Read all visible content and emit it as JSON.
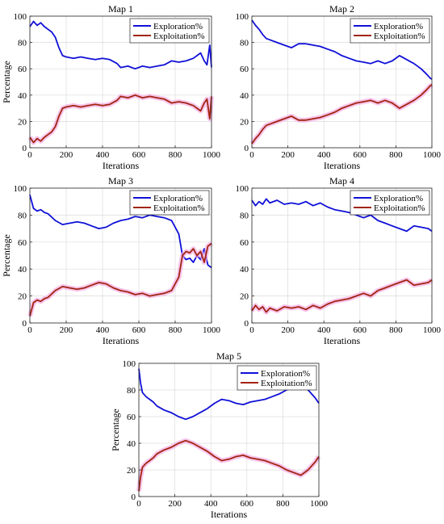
{
  "figure": {
    "series_names": [
      "Exploration%",
      "Exploitation%"
    ],
    "series_colors": [
      "#1010d8",
      "#a32412"
    ],
    "band_color": "#f2a8e2"
  },
  "chart_data": [
    {
      "type": "line",
      "title": "Map 1",
      "xlabel": "Iterations",
      "ylabel": "Percentage",
      "xlim": [
        0,
        1000
      ],
      "ylim": [
        0,
        100
      ],
      "xticks": [
        "0",
        "200",
        "400",
        "600",
        "800",
        "1000"
      ],
      "yticks": [
        "0",
        "20",
        "40",
        "60",
        "80",
        "100"
      ],
      "grid": true,
      "legend": "top-right",
      "series": [
        {
          "name": "Exploration%",
          "x": [
            0,
            20,
            40,
            60,
            80,
            100,
            120,
            140,
            160,
            180,
            200,
            240,
            280,
            320,
            360,
            400,
            440,
            480,
            500,
            540,
            580,
            620,
            660,
            700,
            740,
            780,
            820,
            860,
            900,
            940,
            960,
            975,
            990,
            1000
          ],
          "y": [
            92,
            96,
            93,
            95,
            92,
            90,
            88,
            84,
            76,
            70,
            69,
            68,
            69,
            68,
            67,
            68,
            67,
            64,
            61,
            62,
            60,
            62,
            61,
            62,
            63,
            66,
            65,
            66,
            68,
            72,
            66,
            63,
            78,
            61
          ]
        },
        {
          "name": "Exploitation%",
          "x": [
            0,
            20,
            40,
            60,
            80,
            100,
            120,
            140,
            160,
            180,
            200,
            240,
            280,
            320,
            360,
            400,
            440,
            480,
            500,
            540,
            580,
            620,
            660,
            700,
            740,
            780,
            820,
            860,
            900,
            940,
            960,
            975,
            990,
            1000
          ],
          "y": [
            8,
            4,
            7,
            5,
            8,
            10,
            12,
            16,
            24,
            30,
            31,
            32,
            31,
            32,
            33,
            32,
            33,
            36,
            39,
            38,
            40,
            38,
            39,
            38,
            37,
            34,
            35,
            34,
            32,
            28,
            34,
            37,
            22,
            39
          ]
        }
      ]
    },
    {
      "type": "line",
      "title": "Map 2",
      "xlabel": "Iterations",
      "ylabel": "",
      "xlim": [
        0,
        1000
      ],
      "ylim": [
        0,
        100
      ],
      "xticks": [
        "0",
        "200",
        "400",
        "600",
        "800",
        "1000"
      ],
      "yticks": [
        "0",
        "20",
        "40",
        "60",
        "80",
        "100"
      ],
      "grid": true,
      "legend": "top-right",
      "series": [
        {
          "name": "Exploration%",
          "x": [
            0,
            20,
            40,
            60,
            80,
            100,
            140,
            180,
            220,
            260,
            300,
            340,
            380,
            420,
            460,
            500,
            540,
            580,
            620,
            660,
            700,
            740,
            780,
            820,
            860,
            900,
            940,
            970,
            990,
            1000
          ],
          "y": [
            97,
            93,
            90,
            86,
            83,
            82,
            80,
            78,
            76,
            79,
            79,
            78,
            77,
            75,
            73,
            70,
            68,
            66,
            65,
            64,
            66,
            64,
            66,
            70,
            67,
            64,
            60,
            56,
            53,
            52
          ]
        },
        {
          "name": "Exploitation%",
          "x": [
            0,
            20,
            40,
            60,
            80,
            100,
            140,
            180,
            220,
            260,
            300,
            340,
            380,
            420,
            460,
            500,
            540,
            580,
            620,
            660,
            700,
            740,
            780,
            820,
            860,
            900,
            940,
            970,
            990,
            1000
          ],
          "y": [
            3,
            7,
            10,
            14,
            17,
            18,
            20,
            22,
            24,
            21,
            21,
            22,
            23,
            25,
            27,
            30,
            32,
            34,
            35,
            36,
            34,
            36,
            34,
            30,
            33,
            36,
            40,
            44,
            47,
            48
          ]
        }
      ]
    },
    {
      "type": "line",
      "title": "Map 3",
      "xlabel": "Iterations",
      "ylabel": "Percentage",
      "xlim": [
        0,
        1000
      ],
      "ylim": [
        0,
        100
      ],
      "xticks": [
        "0",
        "200",
        "400",
        "600",
        "800",
        "1000"
      ],
      "yticks": [
        "0",
        "20",
        "40",
        "60",
        "80",
        "100"
      ],
      "grid": true,
      "legend": "top-right",
      "series": [
        {
          "name": "Exploration%",
          "x": [
            0,
            20,
            40,
            60,
            80,
            100,
            140,
            180,
            220,
            260,
            300,
            340,
            380,
            420,
            460,
            500,
            540,
            580,
            620,
            660,
            700,
            740,
            780,
            820,
            840,
            860,
            880,
            900,
            920,
            940,
            960,
            980,
            1000
          ],
          "y": [
            95,
            85,
            83,
            84,
            82,
            81,
            76,
            73,
            74,
            75,
            74,
            72,
            70,
            71,
            74,
            76,
            77,
            79,
            78,
            80,
            79,
            78,
            76,
            66,
            50,
            47,
            48,
            45,
            50,
            47,
            55,
            43,
            41
          ]
        },
        {
          "name": "Exploitation%",
          "x": [
            0,
            20,
            40,
            60,
            80,
            100,
            140,
            180,
            220,
            260,
            300,
            340,
            380,
            420,
            460,
            500,
            540,
            580,
            620,
            660,
            700,
            740,
            780,
            820,
            840,
            860,
            880,
            900,
            920,
            940,
            960,
            980,
            1000
          ],
          "y": [
            5,
            15,
            17,
            16,
            18,
            19,
            24,
            27,
            26,
            25,
            26,
            28,
            30,
            29,
            26,
            24,
            23,
            21,
            22,
            20,
            21,
            22,
            24,
            34,
            50,
            53,
            52,
            55,
            50,
            53,
            45,
            57,
            59
          ]
        }
      ]
    },
    {
      "type": "line",
      "title": "Map 4",
      "xlabel": "Iterations",
      "ylabel": "",
      "xlim": [
        0,
        1000
      ],
      "ylim": [
        0,
        100
      ],
      "xticks": [
        "0",
        "200",
        "400",
        "600",
        "800",
        "1000"
      ],
      "yticks": [
        "0",
        "20",
        "40",
        "60",
        "80",
        "100"
      ],
      "grid": true,
      "legend": "top-right",
      "series": [
        {
          "name": "Exploration%",
          "x": [
            0,
            20,
            40,
            60,
            80,
            100,
            140,
            180,
            220,
            260,
            300,
            340,
            380,
            420,
            460,
            500,
            540,
            580,
            620,
            660,
            700,
            740,
            780,
            820,
            860,
            900,
            940,
            980,
            1000
          ],
          "y": [
            91,
            87,
            90,
            88,
            92,
            89,
            91,
            88,
            89,
            88,
            90,
            87,
            89,
            86,
            84,
            83,
            82,
            80,
            78,
            80,
            76,
            74,
            72,
            70,
            68,
            72,
            71,
            70,
            68
          ]
        },
        {
          "name": "Exploitation%",
          "x": [
            0,
            20,
            40,
            60,
            80,
            100,
            140,
            180,
            220,
            260,
            300,
            340,
            380,
            420,
            460,
            500,
            540,
            580,
            620,
            660,
            700,
            740,
            780,
            820,
            860,
            900,
            940,
            980,
            1000
          ],
          "y": [
            9,
            13,
            10,
            12,
            8,
            11,
            9,
            12,
            11,
            12,
            10,
            13,
            11,
            14,
            16,
            17,
            18,
            20,
            22,
            20,
            24,
            26,
            28,
            30,
            32,
            28,
            29,
            30,
            32
          ]
        }
      ]
    },
    {
      "type": "line",
      "title": "Map 5",
      "xlabel": "Iterations",
      "ylabel": "Percentage",
      "xlim": [
        0,
        1000
      ],
      "ylim": [
        0,
        100
      ],
      "xticks": [
        "0",
        "200",
        "400",
        "600",
        "800",
        "1000"
      ],
      "yticks": [
        "0",
        "20",
        "40",
        "60",
        "80",
        "100"
      ],
      "grid": true,
      "legend": "top-right",
      "series": [
        {
          "name": "Exploration%",
          "x": [
            0,
            10,
            20,
            40,
            60,
            80,
            100,
            140,
            180,
            220,
            260,
            300,
            340,
            380,
            420,
            460,
            500,
            540,
            580,
            620,
            660,
            700,
            740,
            780,
            820,
            860,
            900,
            940,
            980,
            1000
          ],
          "y": [
            96,
            85,
            78,
            75,
            73,
            71,
            68,
            65,
            63,
            60,
            58,
            60,
            63,
            66,
            70,
            73,
            72,
            70,
            69,
            71,
            72,
            73,
            75,
            77,
            80,
            82,
            84,
            80,
            74,
            70
          ]
        },
        {
          "name": "Exploitation%",
          "x": [
            0,
            10,
            20,
            40,
            60,
            80,
            100,
            140,
            180,
            220,
            260,
            300,
            340,
            380,
            420,
            460,
            500,
            540,
            580,
            620,
            660,
            700,
            740,
            780,
            820,
            860,
            900,
            940,
            980,
            1000
          ],
          "y": [
            4,
            15,
            22,
            25,
            27,
            29,
            32,
            35,
            37,
            40,
            42,
            40,
            37,
            34,
            30,
            27,
            28,
            30,
            31,
            29,
            28,
            27,
            25,
            23,
            20,
            18,
            16,
            20,
            26,
            30
          ]
        }
      ]
    }
  ]
}
